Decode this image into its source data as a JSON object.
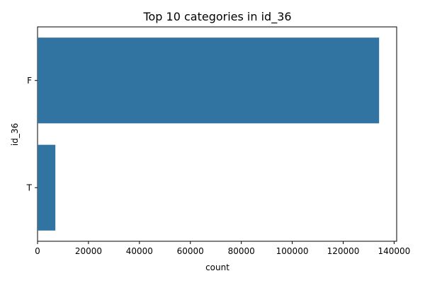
{
  "chart_data": {
    "type": "bar",
    "orientation": "horizontal",
    "title": "Top 10 categories in id_36",
    "xlabel": "count",
    "ylabel": "id_36",
    "categories": [
      "F",
      "T"
    ],
    "values": [
      134100,
      7000
    ],
    "xlim": [
      0,
      141000
    ],
    "xticks": [
      0,
      20000,
      40000,
      60000,
      80000,
      100000,
      120000,
      140000
    ],
    "bar_color": "#3274a1",
    "grid": false,
    "legend": "none"
  }
}
